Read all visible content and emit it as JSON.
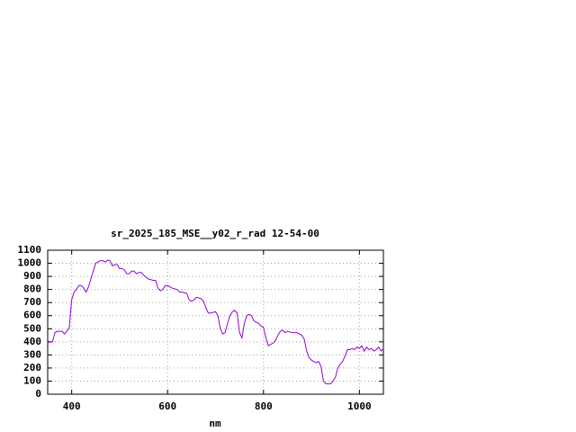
{
  "chart_data": {
    "type": "line",
    "title": "sr_2025_185_MSE__y02_r_rad 12-54-00",
    "x_label": "nm",
    "x": [
      350,
      360,
      365,
      370,
      380,
      385,
      390,
      395,
      400,
      405,
      410,
      415,
      420,
      425,
      430,
      435,
      440,
      445,
      450,
      455,
      460,
      465,
      470,
      475,
      480,
      485,
      490,
      495,
      500,
      505,
      510,
      515,
      520,
      525,
      530,
      535,
      540,
      545,
      550,
      560,
      570,
      575,
      580,
      585,
      590,
      595,
      600,
      610,
      620,
      625,
      630,
      640,
      645,
      650,
      655,
      660,
      670,
      675,
      680,
      685,
      690,
      700,
      705,
      710,
      715,
      720,
      725,
      730,
      735,
      740,
      745,
      750,
      755,
      760,
      765,
      770,
      775,
      780,
      790,
      795,
      800,
      805,
      810,
      815,
      820,
      825,
      830,
      835,
      840,
      845,
      850,
      860,
      870,
      880,
      885,
      890,
      895,
      900,
      905,
      910,
      915,
      920,
      925,
      930,
      935,
      940,
      945,
      950,
      955,
      960,
      965,
      970,
      975,
      980,
      985,
      990,
      995,
      1000,
      1005,
      1010,
      1015,
      1020,
      1025,
      1030,
      1035,
      1040,
      1045,
      1050
    ],
    "series": [
      {
        "color": "#9400d3",
        "values": [
          395,
          400,
          470,
          480,
          480,
          460,
          480,
          510,
          720,
          780,
          800,
          830,
          830,
          810,
          780,
          820,
          880,
          940,
          1000,
          1010,
          1020,
          1020,
          1010,
          1025,
          1020,
          980,
          990,
          990,
          960,
          960,
          950,
          920,
          920,
          940,
          940,
          920,
          930,
          930,
          910,
          880,
          870,
          870,
          810,
          790,
          800,
          830,
          830,
          810,
          800,
          780,
          780,
          770,
          720,
          710,
          720,
          740,
          730,
          710,
          660,
          620,
          620,
          630,
          600,
          500,
          460,
          470,
          540,
          600,
          630,
          640,
          620,
          470,
          430,
          540,
          600,
          610,
          600,
          560,
          540,
          520,
          510,
          430,
          370,
          380,
          390,
          410,
          450,
          480,
          490,
          470,
          480,
          470,
          470,
          450,
          420,
          330,
          280,
          260,
          250,
          240,
          250,
          210,
          100,
          80,
          80,
          80,
          100,
          130,
          200,
          230,
          250,
          290,
          340,
          340,
          350,
          340,
          360,
          350,
          370,
          330,
          360,
          340,
          350,
          330,
          340,
          360,
          330,
          345
        ]
      }
    ],
    "xlim": [
      350,
      1050
    ],
    "ylim": [
      0,
      1100
    ],
    "xticks": [
      400,
      600,
      800,
      1000
    ],
    "yticks": [
      0,
      100,
      200,
      300,
      400,
      500,
      600,
      700,
      800,
      900,
      1000,
      1100
    ],
    "grid": true
  }
}
